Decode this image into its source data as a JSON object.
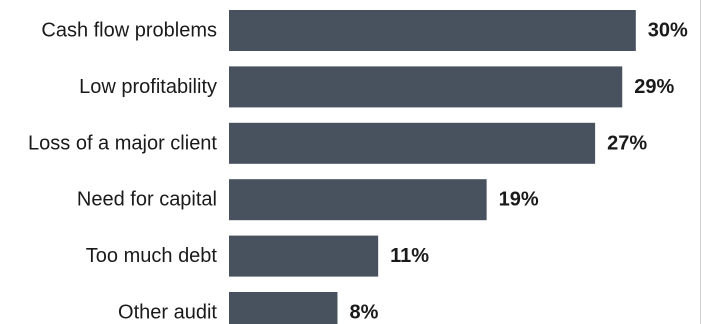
{
  "chart_data": {
    "type": "bar",
    "orientation": "horizontal",
    "title": "",
    "xlabel": "",
    "ylabel": "",
    "categories": [
      "Cash flow problems",
      "Low profitability",
      "Loss of a major client",
      "Need for capital",
      "Too much debt",
      "Other audit"
    ],
    "values": [
      30,
      29,
      27,
      19,
      11,
      8
    ],
    "value_labels": [
      "30%",
      "29%",
      "27%",
      "19%",
      "11%",
      "8%"
    ],
    "unit": "%",
    "xlim": [
      0,
      36
    ],
    "grid": false,
    "legend": "none",
    "bar_color": "#47525e",
    "text_color": "#1a1a1a"
  }
}
